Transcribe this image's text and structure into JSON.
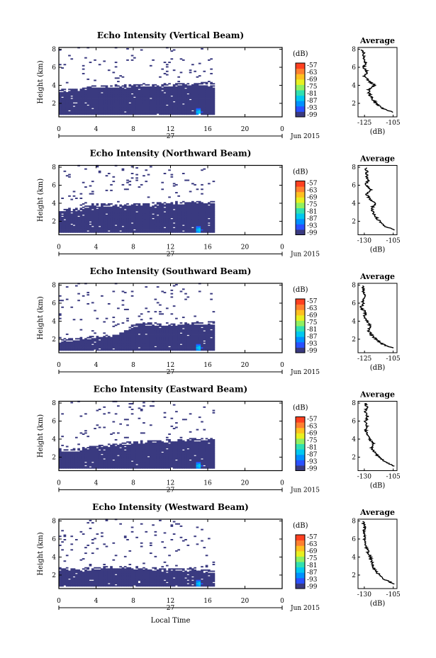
{
  "figure": {
    "xlabel": "Local Time",
    "day_label": "27",
    "date_label": "Jun 2015",
    "height_label": "Height (km)",
    "average_title": "Average",
    "unit_label": "(dB)",
    "colorbar_ticks": [
      "-57",
      "-63",
      "-69",
      "-75",
      "-81",
      "-87",
      "-93",
      "-99"
    ],
    "x_ticks": [
      "0",
      "4",
      "8",
      "12",
      "16",
      "20",
      "0"
    ],
    "y_ticks": [
      "2",
      "4",
      "6",
      "8"
    ],
    "colormap": [
      "#3a3a80",
      "#2a50ff",
      "#0090ff",
      "#00c8f0",
      "#30e0b0",
      "#90f060",
      "#e8f020",
      "#ffc020",
      "#ff8030",
      "#ff4020"
    ]
  },
  "chart_data": [
    {
      "type": "heatmap",
      "title": "Echo Intensity (Vertical Beam)",
      "xlabel": "",
      "ylabel": "Height (km)",
      "xlim": [
        0,
        24
      ],
      "ylim": [
        0.5,
        8.2
      ],
      "colorbar_range_db": [
        -99,
        -57
      ],
      "data_end_hour": 16.7,
      "echo_top_km_at_hour": [
        [
          0,
          3.2
        ],
        [
          2,
          3.3
        ],
        [
          3.5,
          3.6
        ],
        [
          6,
          3.7
        ],
        [
          8,
          3.75
        ],
        [
          10,
          3.8
        ],
        [
          12,
          3.85
        ],
        [
          14,
          3.9
        ],
        [
          16.7,
          4.0
        ]
      ],
      "near_surface_max_at": {
        "hour": 14.9,
        "height_km": 1.0
      },
      "average_profile": {
        "title": "Average",
        "xlabel": "(dB)",
        "xticks": [
          "-125",
          "-105"
        ],
        "xlim": [
          -130,
          -100
        ],
        "ylim": [
          0.5,
          8.2
        ],
        "profile": [
          [
            1.0,
            -103
          ],
          [
            1.5,
            -112
          ],
          [
            2.0,
            -116
          ],
          [
            2.5,
            -119
          ],
          [
            3.0,
            -121
          ],
          [
            3.5,
            -122
          ],
          [
            4.0,
            -117
          ],
          [
            4.5,
            -122
          ],
          [
            5.0,
            -125
          ],
          [
            5.5,
            -123
          ],
          [
            6.0,
            -126
          ],
          [
            6.5,
            -124
          ],
          [
            7.0,
            -126
          ],
          [
            7.5,
            -125
          ],
          [
            8.0,
            -127
          ]
        ]
      }
    },
    {
      "type": "heatmap",
      "title": "Echo Intensity (Northward Beam)",
      "xlabel": "",
      "ylabel": "Height (km)",
      "xlim": [
        0,
        24
      ],
      "ylim": [
        0.5,
        8.2
      ],
      "colorbar_range_db": [
        -99,
        -57
      ],
      "data_end_hour": 16.7,
      "echo_top_km_at_hour": [
        [
          0,
          3.0
        ],
        [
          2,
          3.1
        ],
        [
          3.5,
          3.6
        ],
        [
          6,
          3.6
        ],
        [
          8,
          3.7
        ],
        [
          10,
          3.7
        ],
        [
          12,
          3.8
        ],
        [
          14,
          3.9
        ],
        [
          16.7,
          3.9
        ]
      ],
      "near_surface_max_at": {
        "hour": 14.9,
        "height_km": 1.0
      },
      "average_profile": {
        "title": "Average",
        "xlabel": "(dB)",
        "xticks": [
          "-130",
          "-105"
        ],
        "xlim": [
          -133,
          -102
        ],
        "ylim": [
          0.5,
          8.2
        ],
        "profile": [
          [
            1.0,
            -104
          ],
          [
            1.5,
            -112
          ],
          [
            2.0,
            -116
          ],
          [
            2.5,
            -119
          ],
          [
            3.0,
            -121
          ],
          [
            3.5,
            -122
          ],
          [
            4.0,
            -119
          ],
          [
            4.5,
            -124
          ],
          [
            5.0,
            -126
          ],
          [
            5.5,
            -122
          ],
          [
            6.0,
            -127
          ],
          [
            6.5,
            -125
          ],
          [
            7.0,
            -126
          ],
          [
            7.5,
            -126
          ],
          [
            8.0,
            -127
          ]
        ]
      }
    },
    {
      "type": "heatmap",
      "title": "Echo Intensity (Southward Beam)",
      "xlabel": "",
      "ylabel": "Height (km)",
      "xlim": [
        0,
        24
      ],
      "ylim": [
        0.5,
        8.2
      ],
      "colorbar_range_db": [
        -99,
        -57
      ],
      "data_end_hour": 16.7,
      "echo_top_km_at_hour": [
        [
          0,
          1.6
        ],
        [
          2,
          1.8
        ],
        [
          3.5,
          2.0
        ],
        [
          6,
          2.2
        ],
        [
          8,
          3.3
        ],
        [
          10,
          3.5
        ],
        [
          12,
          3.4
        ],
        [
          14,
          3.5
        ],
        [
          16.7,
          3.6
        ]
      ],
      "near_surface_max_at": {
        "hour": 14.9,
        "height_km": 1.0
      },
      "average_profile": {
        "title": "Average",
        "xlabel": "(dB)",
        "xticks": [
          "-125",
          "-105"
        ],
        "xlim": [
          -130,
          -100
        ],
        "ylim": [
          0.5,
          8.2
        ],
        "profile": [
          [
            1.0,
            -103
          ],
          [
            1.5,
            -112
          ],
          [
            2.0,
            -116
          ],
          [
            2.5,
            -120
          ],
          [
            3.0,
            -122
          ],
          [
            3.5,
            -121
          ],
          [
            4.0,
            -123
          ],
          [
            4.5,
            -125
          ],
          [
            5.0,
            -124
          ],
          [
            5.5,
            -128
          ],
          [
            6.0,
            -126
          ],
          [
            6.5,
            -126
          ],
          [
            7.0,
            -125
          ],
          [
            7.5,
            -126
          ],
          [
            8.0,
            -126
          ]
        ]
      }
    },
    {
      "type": "heatmap",
      "title": "Echo Intensity (Eastward Beam)",
      "xlabel": "",
      "ylabel": "Height (km)",
      "xlim": [
        0,
        24
      ],
      "ylim": [
        0.5,
        8.2
      ],
      "colorbar_range_db": [
        -99,
        -57
      ],
      "data_end_hour": 16.7,
      "echo_top_km_at_hour": [
        [
          0,
          2.5
        ],
        [
          2,
          2.6
        ],
        [
          3.5,
          2.9
        ],
        [
          6,
          3.2
        ],
        [
          8,
          3.4
        ],
        [
          10,
          3.5
        ],
        [
          12,
          3.6
        ],
        [
          14,
          3.7
        ],
        [
          16.7,
          3.8
        ]
      ],
      "near_surface_max_at": {
        "hour": 14.9,
        "height_km": 1.0
      },
      "average_profile": {
        "title": "Average",
        "xlabel": "(dB)",
        "xticks": [
          "-130",
          "-105"
        ],
        "xlim": [
          -133,
          -102
        ],
        "ylim": [
          0.5,
          8.2
        ],
        "profile": [
          [
            1.0,
            -104
          ],
          [
            1.5,
            -112
          ],
          [
            2.0,
            -116
          ],
          [
            2.5,
            -120
          ],
          [
            3.0,
            -122
          ],
          [
            3.5,
            -121
          ],
          [
            4.0,
            -124
          ],
          [
            4.5,
            -126
          ],
          [
            5.0,
            -127
          ],
          [
            5.5,
            -126
          ],
          [
            6.0,
            -127
          ],
          [
            6.5,
            -125
          ],
          [
            7.0,
            -127
          ],
          [
            7.5,
            -126
          ],
          [
            8.0,
            -127
          ]
        ]
      }
    },
    {
      "type": "heatmap",
      "title": "Echo Intensity (Westward Beam)",
      "xlabel": "",
      "ylabel": "Height (km)",
      "xlim": [
        0,
        24
      ],
      "ylim": [
        0.5,
        8.2
      ],
      "colorbar_range_db": [
        -99,
        -57
      ],
      "data_end_hour": 16.7,
      "echo_top_km_at_hour": [
        [
          0,
          2.4
        ],
        [
          2,
          2.4
        ],
        [
          3.5,
          2.5
        ],
        [
          6,
          2.7
        ],
        [
          8,
          2.6
        ],
        [
          10,
          2.5
        ],
        [
          12,
          2.4
        ],
        [
          14,
          2.3
        ],
        [
          16.7,
          2.2
        ]
      ],
      "near_surface_max_at": {
        "hour": 14.9,
        "height_km": 1.0
      },
      "average_profile": {
        "title": "Average",
        "xlabel": "(dB)",
        "xticks": [
          "-130",
          "-105"
        ],
        "xlim": [
          -133,
          -102
        ],
        "ylim": [
          0.5,
          8.2
        ],
        "profile": [
          [
            1.0,
            -104
          ],
          [
            1.5,
            -112
          ],
          [
            2.0,
            -116
          ],
          [
            2.5,
            -119
          ],
          [
            3.0,
            -121
          ],
          [
            3.5,
            -122
          ],
          [
            4.0,
            -123
          ],
          [
            4.5,
            -125
          ],
          [
            5.0,
            -126
          ],
          [
            5.5,
            -127
          ],
          [
            6.0,
            -128
          ],
          [
            6.5,
            -128
          ],
          [
            7.0,
            -128
          ],
          [
            7.5,
            -128
          ],
          [
            8.0,
            -129
          ]
        ]
      }
    }
  ]
}
